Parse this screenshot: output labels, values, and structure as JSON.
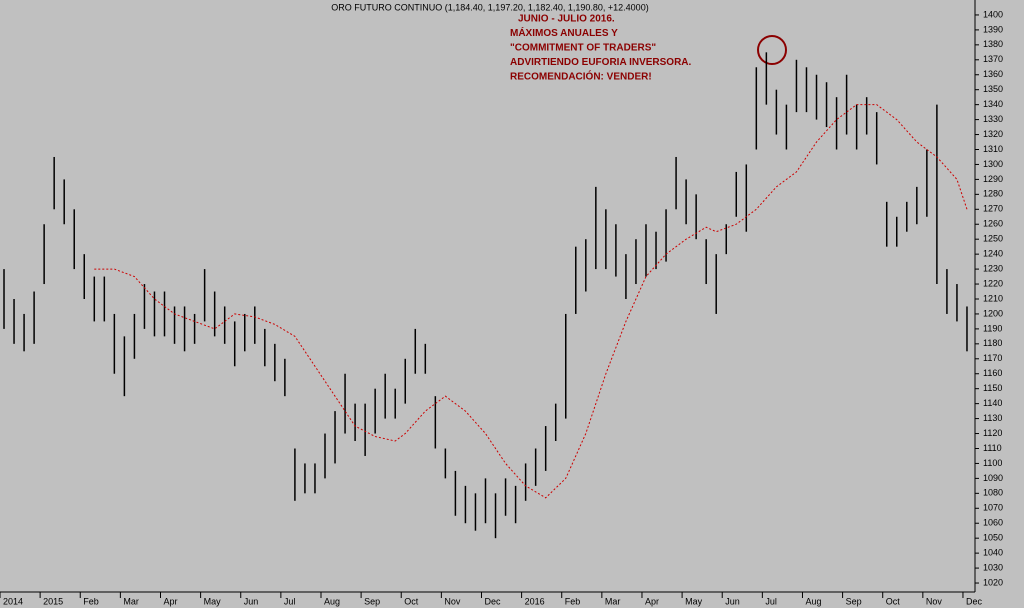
{
  "chart_data": {
    "type": "ohlc",
    "title": "ORO FUTURO CONTINUO (1,184.40, 1,197.20, 1,182.40, 1,190.80, +12.4000)",
    "annotation": [
      "JUNIO - JULIO 2016.",
      "MÁXIMOS ANUALES Y",
      "\"COMMITMENT OF TRADERS\"",
      "ADVIRTIENDO EUFORIA INVERSORA.",
      "RECOMENDACIÓN: VENDER!"
    ],
    "color": "#000000",
    "ma_color": "#cc0000",
    "annotation_color": "#8b0000",
    "xlim": [
      -1,
      23.3
    ],
    "ylim": [
      1014,
      1410
    ],
    "xticks": [
      {
        "value": -1,
        "label": "2014"
      },
      {
        "value": 0,
        "label": "2015"
      },
      {
        "value": 1,
        "label": "Feb"
      },
      {
        "value": 2,
        "label": "Mar"
      },
      {
        "value": 3,
        "label": "Apr"
      },
      {
        "value": 4,
        "label": "May"
      },
      {
        "value": 5,
        "label": "Jun"
      },
      {
        "value": 6,
        "label": "Jul"
      },
      {
        "value": 7,
        "label": "Aug"
      },
      {
        "value": 8,
        "label": "Sep"
      },
      {
        "value": 9,
        "label": "Oct"
      },
      {
        "value": 10,
        "label": "Nov"
      },
      {
        "value": 11,
        "label": "Dec"
      },
      {
        "value": 12,
        "label": "2016"
      },
      {
        "value": 13,
        "label": "Feb"
      },
      {
        "value": 14,
        "label": "Mar"
      },
      {
        "value": 15,
        "label": "Apr"
      },
      {
        "value": 16,
        "label": "May"
      },
      {
        "value": 17,
        "label": "Jun"
      },
      {
        "value": 18,
        "label": "Jul"
      },
      {
        "value": 19,
        "label": "Aug"
      },
      {
        "value": 20,
        "label": "Sep"
      },
      {
        "value": 21,
        "label": "Oct"
      },
      {
        "value": 22,
        "label": "Nov"
      },
      {
        "value": 23,
        "label": "Dec"
      }
    ],
    "yticks": [
      1020,
      1030,
      1040,
      1050,
      1060,
      1070,
      1080,
      1090,
      1100,
      1110,
      1120,
      1130,
      1140,
      1150,
      1160,
      1170,
      1180,
      1190,
      1200,
      1210,
      1220,
      1230,
      1240,
      1250,
      1260,
      1270,
      1280,
      1290,
      1300,
      1310,
      1320,
      1330,
      1340,
      1350,
      1360,
      1370,
      1380,
      1390,
      1400
    ],
    "x": [
      -0.9,
      -0.65,
      -0.4,
      -0.15,
      0.1,
      0.35,
      0.6,
      0.85,
      1.1,
      1.35,
      1.6,
      1.85,
      2.1,
      2.35,
      2.6,
      2.85,
      3.1,
      3.35,
      3.6,
      3.85,
      4.1,
      4.35,
      4.6,
      4.85,
      5.1,
      5.35,
      5.6,
      5.85,
      6.1,
      6.35,
      6.6,
      6.85,
      7.1,
      7.35,
      7.6,
      7.85,
      8.1,
      8.35,
      8.6,
      8.85,
      9.1,
      9.35,
      9.6,
      9.85,
      10.1,
      10.35,
      10.6,
      10.85,
      11.1,
      11.35,
      11.6,
      11.85,
      12.1,
      12.35,
      12.6,
      12.85,
      13.1,
      13.35,
      13.6,
      13.85,
      14.1,
      14.35,
      14.6,
      14.85,
      15.1,
      15.35,
      15.6,
      15.85,
      16.1,
      16.35,
      16.6,
      16.85,
      17.1,
      17.35,
      17.6,
      17.85,
      18.1,
      18.35,
      18.6,
      18.85,
      19.1,
      19.35,
      19.6,
      19.85,
      20.1,
      20.35,
      20.6,
      20.85,
      21.1,
      21.35,
      21.6,
      21.85,
      22.1,
      22.35,
      22.6,
      22.85,
      23.1
    ],
    "high": [
      1230,
      1210,
      1200,
      1215,
      1260,
      1305,
      1290,
      1270,
      1240,
      1225,
      1225,
      1200,
      1185,
      1200,
      1220,
      1215,
      1215,
      1205,
      1205,
      1200,
      1230,
      1215,
      1205,
      1195,
      1200,
      1205,
      1190,
      1180,
      1170,
      1110,
      1100,
      1100,
      1120,
      1135,
      1160,
      1140,
      1140,
      1150,
      1160,
      1150,
      1170,
      1190,
      1180,
      1145,
      1110,
      1095,
      1085,
      1080,
      1090,
      1080,
      1090,
      1085,
      1100,
      1110,
      1125,
      1140,
      1200,
      1245,
      1250,
      1285,
      1270,
      1260,
      1240,
      1250,
      1260,
      1255,
      1270,
      1305,
      1290,
      1280,
      1250,
      1240,
      1260,
      1295,
      1300,
      1365,
      1375,
      1350,
      1340,
      1370,
      1365,
      1360,
      1355,
      1345,
      1360,
      1340,
      1345,
      1335,
      1275,
      1265,
      1275,
      1285,
      1310,
      1340,
      1230,
      1220,
      1205
    ],
    "low": [
      1190,
      1180,
      1175,
      1180,
      1220,
      1270,
      1260,
      1230,
      1210,
      1195,
      1195,
      1160,
      1145,
      1170,
      1190,
      1185,
      1185,
      1180,
      1175,
      1180,
      1195,
      1185,
      1180,
      1165,
      1175,
      1180,
      1165,
      1155,
      1145,
      1075,
      1080,
      1080,
      1090,
      1100,
      1120,
      1115,
      1105,
      1120,
      1130,
      1130,
      1140,
      1160,
      1160,
      1110,
      1090,
      1065,
      1060,
      1055,
      1060,
      1050,
      1065,
      1060,
      1075,
      1085,
      1095,
      1115,
      1130,
      1200,
      1215,
      1230,
      1230,
      1225,
      1210,
      1220,
      1225,
      1230,
      1235,
      1270,
      1260,
      1250,
      1220,
      1200,
      1240,
      1265,
      1255,
      1310,
      1340,
      1320,
      1310,
      1335,
      1335,
      1330,
      1325,
      1310,
      1320,
      1310,
      1320,
      1300,
      1245,
      1245,
      1255,
      1260,
      1265,
      1220,
      1200,
      1195,
      1175
    ],
    "ma_x": [
      1.35,
      1.85,
      2.35,
      2.85,
      3.35,
      3.85,
      4.35,
      4.85,
      5.35,
      5.85,
      6.35,
      6.85,
      7.35,
      7.85,
      8.35,
      8.85,
      9.1,
      9.6,
      10.1,
      10.6,
      11.1,
      11.6,
      12.1,
      12.6,
      13.1,
      13.6,
      14.1,
      14.6,
      15.1,
      15.6,
      16.1,
      16.6,
      16.85,
      17.35,
      17.85,
      18.35,
      18.85,
      19.35,
      19.85,
      20.35,
      20.85,
      21.35,
      21.85,
      22.35,
      22.85,
      23.1
    ],
    "ma": [
      1230,
      1230,
      1225,
      1210,
      1200,
      1195,
      1190,
      1200,
      1198,
      1193,
      1185,
      1165,
      1145,
      1125,
      1118,
      1115,
      1120,
      1135,
      1145,
      1135,
      1120,
      1100,
      1085,
      1077,
      1090,
      1120,
      1160,
      1195,
      1225,
      1240,
      1250,
      1258,
      1255,
      1260,
      1270,
      1285,
      1295,
      1315,
      1330,
      1340,
      1340,
      1330,
      1315,
      1305,
      1290,
      1270
    ]
  }
}
